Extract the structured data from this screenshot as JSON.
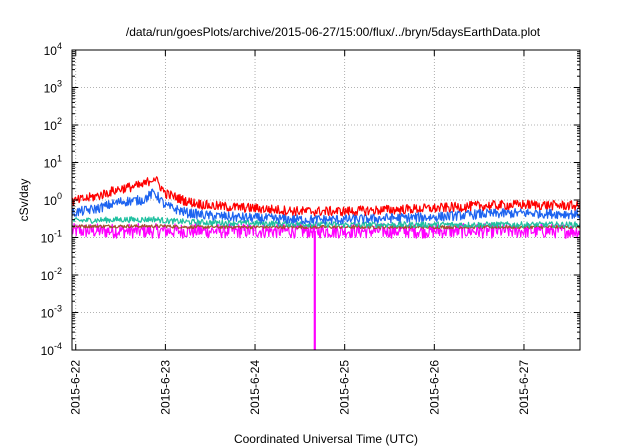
{
  "chart_data": {
    "type": "line",
    "title": "/data/run/goesPlots/archive/2015-06-27/15:00/flux/../bryn/5daysEarthData.plot",
    "xlabel": "Coordinated Universal Time (UTC)",
    "ylabel": "cSv/day",
    "y_scale": "log",
    "ylim": [
      0.0001,
      10000
    ],
    "xlim": [
      "2015-06-21 23:00",
      "2015-06-27 15:00"
    ],
    "grid": true,
    "y_ticks": [
      {
        "value": 0.0001,
        "label_base": "10",
        "label_exp": "-4"
      },
      {
        "value": 0.001,
        "label_base": "10",
        "label_exp": "-3"
      },
      {
        "value": 0.01,
        "label_base": "10",
        "label_exp": "-2"
      },
      {
        "value": 0.1,
        "label_base": "10",
        "label_exp": "-1"
      },
      {
        "value": 1,
        "label_base": "10",
        "label_exp": "0"
      },
      {
        "value": 10,
        "label_base": "10",
        "label_exp": "1"
      },
      {
        "value": 100,
        "label_base": "10",
        "label_exp": "2"
      },
      {
        "value": 1000,
        "label_base": "10",
        "label_exp": "3"
      },
      {
        "value": 10000,
        "label_base": "10",
        "label_exp": "4"
      }
    ],
    "x_ticks": [
      {
        "value": "2015-06-22 00:00",
        "label": "2015-6-22"
      },
      {
        "value": "2015-06-23 00:00",
        "label": "2015-6-23"
      },
      {
        "value": "2015-06-24 00:00",
        "label": "2015-6-24"
      },
      {
        "value": "2015-06-25 00:00",
        "label": "2015-6-25"
      },
      {
        "value": "2015-06-26 00:00",
        "label": "2015-6-26"
      },
      {
        "value": "2015-06-27 00:00",
        "label": "2015-6-27"
      }
    ],
    "x": [
      "2015-06-21 23:00",
      "2015-06-22 06:00",
      "2015-06-22 12:00",
      "2015-06-22 18:00",
      "2015-06-22 21:00",
      "2015-06-23 00:00",
      "2015-06-23 06:00",
      "2015-06-23 12:00",
      "2015-06-24 00:00",
      "2015-06-24 12:00",
      "2015-06-25 00:00",
      "2015-06-25 12:00",
      "2015-06-26 00:00",
      "2015-06-26 12:00",
      "2015-06-27 00:00",
      "2015-06-27 15:00"
    ],
    "series": [
      {
        "color": "#ff0000",
        "noise": 0.3,
        "values": [
          0.9,
          1.3,
          2.0,
          2.5,
          4.0,
          1.5,
          0.9,
          0.7,
          0.6,
          0.5,
          0.5,
          0.55,
          0.6,
          0.7,
          0.75,
          0.7
        ]
      },
      {
        "color": "#1e64f0",
        "noise": 0.3,
        "values": [
          0.45,
          0.6,
          0.9,
          1.0,
          1.6,
          0.7,
          0.45,
          0.38,
          0.33,
          0.3,
          0.3,
          0.33,
          0.35,
          0.42,
          0.45,
          0.42
        ]
      },
      {
        "color": "#20c0a0",
        "noise": 0.18,
        "values": [
          0.28,
          0.29,
          0.3,
          0.3,
          0.31,
          0.28,
          0.26,
          0.25,
          0.24,
          0.23,
          0.22,
          0.22,
          0.22,
          0.22,
          0.22,
          0.22
        ]
      },
      {
        "color": "#a0522d",
        "noise": 0.1,
        "values": [
          0.2,
          0.2,
          0.2,
          0.2,
          0.2,
          0.2,
          0.19,
          0.19,
          0.19,
          0.19,
          0.19,
          0.19,
          0.19,
          0.19,
          0.19,
          0.19
        ]
      },
      {
        "color": "#ff00ff",
        "noise": 0.45,
        "values": [
          0.15,
          0.15,
          0.15,
          0.15,
          0.15,
          0.15,
          0.15,
          0.15,
          0.15,
          0.15,
          0.15,
          0.15,
          0.15,
          0.15,
          0.15,
          0.15
        ]
      }
    ],
    "annotations": [
      {
        "type": "dropout",
        "color": "#ff00ff",
        "x": "2015-06-24 16:00",
        "from": 0.15,
        "to": 0.0001
      }
    ]
  }
}
